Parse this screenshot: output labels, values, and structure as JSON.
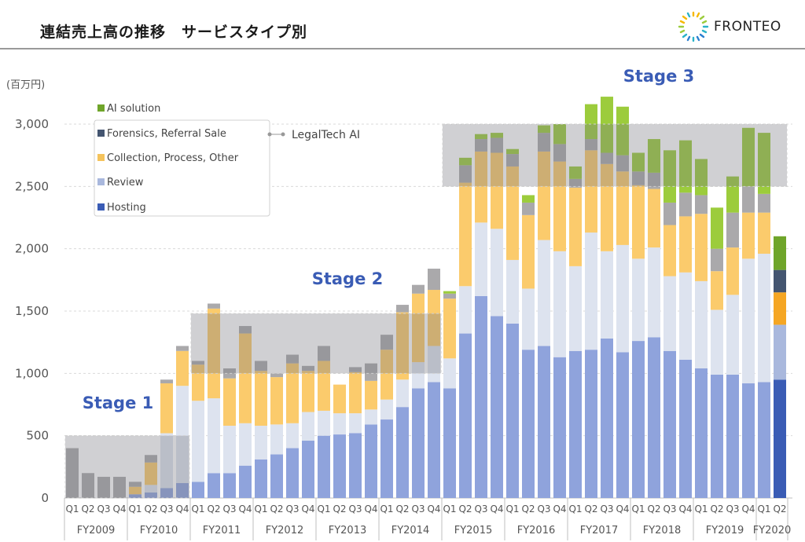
{
  "header": {
    "title": "連結売上高の推移　サービスタイプ別",
    "logo_text": "FRONTEO",
    "logo_icon": "starburst-logo-icon"
  },
  "chart_data": {
    "type": "bar",
    "stacked": true,
    "unit_label": "(百万円)",
    "ylim": [
      0,
      3200
    ],
    "yticks": [
      0,
      500,
      1000,
      1500,
      2000,
      2500,
      3000
    ],
    "ytick_labels": [
      "0",
      "500",
      "1,000",
      "1,500",
      "2,000",
      "2,500",
      "3,000"
    ],
    "categories": [
      "Q1",
      "Q2",
      "Q3",
      "Q4",
      "Q1",
      "Q2",
      "Q3",
      "Q4",
      "Q1",
      "Q2",
      "Q3",
      "Q4",
      "Q1",
      "Q2",
      "Q3",
      "Q4",
      "Q1",
      "Q2",
      "Q3",
      "Q4",
      "Q1",
      "Q2",
      "Q3",
      "Q4",
      "Q1",
      "Q2",
      "Q3",
      "Q4",
      "Q1",
      "Q2",
      "Q3",
      "Q4",
      "Q1",
      "Q2",
      "Q3",
      "Q4",
      "Q1",
      "Q2",
      "Q3",
      "Q4",
      "Q1",
      "Q2",
      "Q3",
      "Q4",
      "Q1",
      "Q2"
    ],
    "fiscal_years": [
      {
        "label": "FY2009",
        "quarters": 4
      },
      {
        "label": "FY2010",
        "quarters": 4
      },
      {
        "label": "FY2011",
        "quarters": 4
      },
      {
        "label": "FY2012",
        "quarters": 4
      },
      {
        "label": "FY2013",
        "quarters": 4
      },
      {
        "label": "FY2014",
        "quarters": 4
      },
      {
        "label": "FY2015",
        "quarters": 4
      },
      {
        "label": "FY2016",
        "quarters": 4
      },
      {
        "label": "FY2017",
        "quarters": 4
      },
      {
        "label": "FY2018",
        "quarters": 4
      },
      {
        "label": "FY2019",
        "quarters": 4
      },
      {
        "label": "FY2020",
        "quarters": 2
      }
    ],
    "series": [
      {
        "name": "Hosting",
        "color": "#8fa3dc",
        "latest_color": "#3a5cb5",
        "values": [
          0,
          0,
          0,
          0,
          30,
          45,
          80,
          120,
          130,
          200,
          200,
          260,
          310,
          350,
          400,
          460,
          500,
          510,
          520,
          590,
          630,
          730,
          880,
          930,
          880,
          1320,
          1620,
          1460,
          1400,
          1190,
          1220,
          1130,
          1180,
          1190,
          1280,
          1170,
          1260,
          1290,
          1180,
          1110,
          1040,
          990,
          990,
          920,
          930,
          950
        ]
      },
      {
        "name": "Review",
        "color": "#dde3ef",
        "latest_color": "#a9b8dd",
        "values": [
          0,
          0,
          0,
          0,
          0,
          60,
          440,
          780,
          650,
          600,
          380,
          340,
          270,
          240,
          200,
          230,
          200,
          170,
          160,
          120,
          160,
          220,
          210,
          290,
          240,
          380,
          590,
          700,
          510,
          490,
          850,
          850,
          680,
          940,
          700,
          860,
          660,
          720,
          600,
          700,
          700,
          520,
          640,
          1000,
          1030,
          440
        ]
      },
      {
        "name": "Collection, Process, Other",
        "color": "#fbcb6c",
        "latest_color": "#f5a623",
        "values": [
          0,
          0,
          0,
          0,
          60,
          180,
          400,
          280,
          290,
          720,
          380,
          720,
          440,
          380,
          480,
          330,
          400,
          230,
          330,
          230,
          400,
          540,
          550,
          450,
          480,
          830,
          570,
          610,
          750,
          590,
          710,
          720,
          630,
          660,
          700,
          590,
          590,
          470,
          410,
          450,
          540,
          310,
          380,
          370,
          330,
          260
        ]
      },
      {
        "name": "Forensics, Referral Sale",
        "color": "#aaa9ab",
        "latest_color": "#445570",
        "values": [
          400,
          200,
          170,
          170,
          40,
          60,
          30,
          40,
          30,
          40,
          80,
          60,
          80,
          30,
          70,
          40,
          120,
          0,
          40,
          140,
          120,
          60,
          70,
          170,
          40,
          140,
          100,
          120,
          100,
          100,
          150,
          140,
          70,
          90,
          90,
          130,
          110,
          130,
          180,
          190,
          150,
          180,
          280,
          210,
          150,
          180
        ]
      },
      {
        "name": "AI solution",
        "color": "#9ccc3c",
        "latest_color": "#6fa52a",
        "values": [
          0,
          0,
          0,
          0,
          0,
          0,
          0,
          0,
          0,
          0,
          0,
          0,
          0,
          0,
          0,
          0,
          0,
          0,
          0,
          0,
          0,
          0,
          0,
          0,
          20,
          60,
          40,
          40,
          40,
          60,
          60,
          160,
          100,
          280,
          450,
          390,
          150,
          270,
          420,
          420,
          290,
          330,
          290,
          470,
          490,
          270
        ]
      }
    ],
    "legend": {
      "placement": "top-left",
      "items": [
        "AI solution",
        "Forensics, Referral Sale",
        "Collection, Process, Other",
        "Review",
        "Hosting"
      ],
      "bracket_label": "LegalTech AI"
    },
    "stages": [
      {
        "label": "Stage 1",
        "q_start": 1,
        "q_end": 8,
        "y_low": 0,
        "y_high": 500
      },
      {
        "label": "Stage 2",
        "q_start": 9,
        "q_end": 24,
        "y_low": 1000,
        "y_high": 1480
      },
      {
        "label": "Stage 3",
        "q_start": 25,
        "q_end": 46,
        "y_low": 2500,
        "y_high": 3000
      }
    ]
  }
}
